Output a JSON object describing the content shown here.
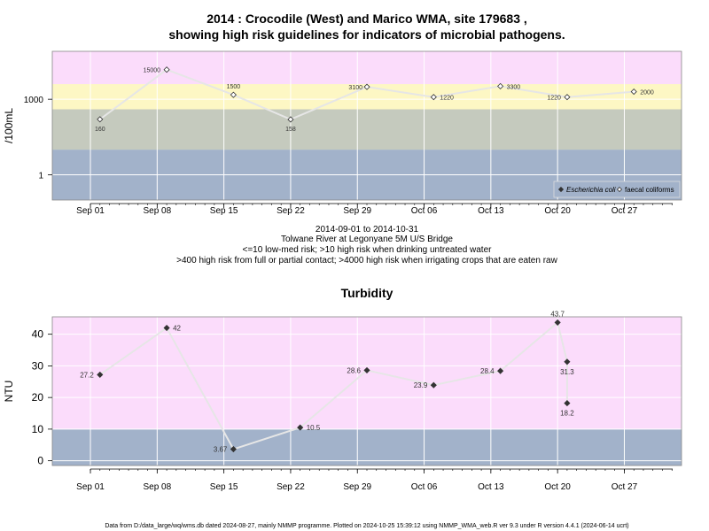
{
  "title_line1": "2014 : Crocodile (West) and Marico WMA, site 179683 ,",
  "title_line2": "showing high risk guidelines for indicators of microbial pathogens.",
  "caption": [
    "2014-09-01 to 2014-10-31",
    "Tolwane River at Legonyane 5M U/S Bridge",
    "<=10 low-med risk; >10 high risk when drinking untreated water",
    ">400 high risk from full or partial contact; >4000 high risk when irrigating crops that are eaten raw"
  ],
  "footer": "Data from D:/data_large/wq/wms.db dated 2024-08-27, mainly NMMP programme. Plotted on 2024-10-25 15:39:12 using NMMP_WMA_web.R ver 9.3 under R version 4.4.1 (2024-06-14 ucrt)",
  "colors": {
    "band_blue": "#a2b2ca",
    "band_grey": "#c5cabe",
    "band_yellow": "#fdf7c4",
    "band_pink": "#fbdcfb",
    "line": "#e6e6e6",
    "point": "#333333"
  },
  "chart_data": [
    {
      "type": "line",
      "title": "",
      "xlabel": "",
      "ylabel": "/100mL",
      "y_scale": "log",
      "ylim": [
        0.1,
        80000
      ],
      "x_range": [
        "2014-08-28",
        "2014-11-02"
      ],
      "x_ticks": [
        {
          "date": "2014-09-01",
          "label": "Sep 01"
        },
        {
          "date": "2014-09-08",
          "label": "Sep 08"
        },
        {
          "date": "2014-09-15",
          "label": "Sep 15"
        },
        {
          "date": "2014-09-22",
          "label": "Sep 22"
        },
        {
          "date": "2014-09-29",
          "label": "Sep 29"
        },
        {
          "date": "2014-10-06",
          "label": "Oct 06"
        },
        {
          "date": "2014-10-13",
          "label": "Oct 13"
        },
        {
          "date": "2014-10-20",
          "label": "Oct 20"
        },
        {
          "date": "2014-10-27",
          "label": "Oct 27"
        }
      ],
      "y_ticks": [
        1,
        1000
      ],
      "grid": true,
      "guideline_bands": [
        {
          "from": 0.1,
          "to": 10,
          "color": "band_blue"
        },
        {
          "from": 10,
          "to": 400,
          "color": "band_grey"
        },
        {
          "from": 400,
          "to": 4000,
          "color": "band_yellow"
        },
        {
          "from": 4000,
          "to": 80000,
          "color": "band_pink"
        }
      ],
      "legend_position": "bottom-right",
      "series": [
        {
          "name": "Escherichia coli",
          "marker": "filled-diamond",
          "points": []
        },
        {
          "name": "faecal coliforms",
          "marker": "open-diamond",
          "points": [
            {
              "x": "2014-09-02",
              "y": 160,
              "label": "160"
            },
            {
              "x": "2014-09-09",
              "y": 15000,
              "label": "15000"
            },
            {
              "x": "2014-09-16",
              "y": 1500,
              "label": "1500"
            },
            {
              "x": "2014-09-22",
              "y": 158,
              "label": "158"
            },
            {
              "x": "2014-09-30",
              "y": 3100,
              "label": "3100"
            },
            {
              "x": "2014-10-07",
              "y": 1220,
              "label": "1220"
            },
            {
              "x": "2014-10-14",
              "y": 3300,
              "label": "3300"
            },
            {
              "x": "2014-10-21",
              "y": 1220,
              "label": "1220"
            },
            {
              "x": "2014-10-28",
              "y": 2000,
              "label": "2000"
            }
          ]
        }
      ]
    },
    {
      "type": "line",
      "title": "Turbidity",
      "xlabel": "",
      "ylabel": "NTU",
      "y_scale": "linear",
      "ylim": [
        -1.5,
        45.5
      ],
      "x_range": [
        "2014-08-28",
        "2014-11-02"
      ],
      "x_ticks": [
        {
          "date": "2014-09-01",
          "label": "Sep 01"
        },
        {
          "date": "2014-09-08",
          "label": "Sep 08"
        },
        {
          "date": "2014-09-15",
          "label": "Sep 15"
        },
        {
          "date": "2014-09-22",
          "label": "Sep 22"
        },
        {
          "date": "2014-09-29",
          "label": "Sep 29"
        },
        {
          "date": "2014-10-06",
          "label": "Oct 06"
        },
        {
          "date": "2014-10-13",
          "label": "Oct 13"
        },
        {
          "date": "2014-10-20",
          "label": "Oct 20"
        },
        {
          "date": "2014-10-27",
          "label": "Oct 27"
        }
      ],
      "y_ticks": [
        0,
        10,
        20,
        30,
        40
      ],
      "grid": true,
      "guideline_bands": [
        {
          "from": -1.5,
          "to": 10,
          "color": "band_blue"
        },
        {
          "from": 10,
          "to": 45.5,
          "color": "band_pink"
        }
      ],
      "series": [
        {
          "name": "",
          "marker": "filled-diamond",
          "points": [
            {
              "x": "2014-09-02",
              "y": 27.2,
              "label": "27.2",
              "label_side": "left"
            },
            {
              "x": "2014-09-09",
              "y": 42,
              "label": "42",
              "label_side": "right"
            },
            {
              "x": "2014-09-16",
              "y": 3.67,
              "label": "3.67",
              "label_side": "left"
            },
            {
              "x": "2014-09-23",
              "y": 10.5,
              "label": "10.5",
              "label_side": "right"
            },
            {
              "x": "2014-09-30",
              "y": 28.6,
              "label": "28.6",
              "label_side": "left"
            },
            {
              "x": "2014-10-07",
              "y": 23.9,
              "label": "23.9",
              "label_side": "left"
            },
            {
              "x": "2014-10-14",
              "y": 28.4,
              "label": "28.4",
              "label_side": "left"
            },
            {
              "x": "2014-10-20",
              "y": 43.7,
              "label": "43.7",
              "label_side": "above"
            },
            {
              "x": "2014-10-21",
              "y": 31.3,
              "label": "31.3",
              "label_side": "below"
            },
            {
              "x": "2014-10-21",
              "y": 18.2,
              "label": "18.2",
              "label_side": "below"
            }
          ]
        }
      ]
    }
  ]
}
